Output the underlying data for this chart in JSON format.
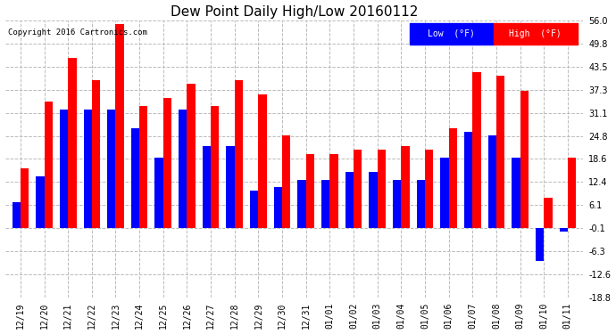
{
  "title": "Dew Point Daily High/Low 20160112",
  "copyright": "Copyright 2016 Cartronics.com",
  "labels": [
    "12/19",
    "12/20",
    "12/21",
    "12/22",
    "12/23",
    "12/24",
    "12/25",
    "12/26",
    "12/27",
    "12/28",
    "12/29",
    "12/30",
    "12/31",
    "01/01",
    "01/02",
    "01/03",
    "01/04",
    "01/05",
    "01/06",
    "01/07",
    "01/08",
    "01/09",
    "01/10",
    "01/11"
  ],
  "low_values": [
    7,
    14,
    32,
    32,
    32,
    27,
    19,
    32,
    22,
    22,
    10,
    11,
    13,
    13,
    15,
    15,
    13,
    13,
    19,
    26,
    25,
    19,
    -9,
    -1
  ],
  "high_values": [
    16,
    34,
    46,
    40,
    55,
    33,
    35,
    39,
    33,
    40,
    36,
    25,
    20,
    20,
    21,
    21,
    22,
    21,
    27,
    42,
    41,
    37,
    8,
    19
  ],
  "ylim": [
    -18.8,
    56.0
  ],
  "yticks": [
    -18.8,
    -12.6,
    -6.3,
    -0.1,
    6.1,
    12.4,
    18.6,
    24.8,
    31.1,
    37.3,
    43.5,
    49.8,
    56.0
  ],
  "bar_width": 0.35,
  "low_color": "#0000ff",
  "high_color": "#ff0000",
  "bg_color": "#ffffff",
  "grid_color": "#bbbbbb",
  "title_fontsize": 11,
  "tick_fontsize": 7,
  "legend_low_label": "Low  (°F)",
  "legend_high_label": "High  (°F)"
}
